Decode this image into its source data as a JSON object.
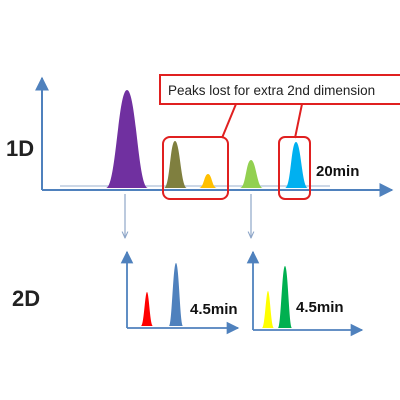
{
  "labels": {
    "first_dimension": "1D",
    "second_dimension": "2D",
    "callout": "Peaks lost for extra 2nd dimension",
    "first_dim_time": "20min",
    "second_dim_time_left": "4.5min",
    "second_dim_time_right": "4.5min"
  },
  "colors": {
    "axis": "#4f81bd",
    "arrow": "#8ea6c8",
    "callout_border": "#e02020",
    "peak_purple": "#7030a0",
    "peak_olive": "#7f7f3f",
    "peak_gold": "#ffc000",
    "peak_lightgreen": "#92d050",
    "peak_skyblue": "#00b0f0",
    "peak_red": "#ff0000",
    "peak_steelblue": "#4f81bd",
    "peak_yellow": "#ffff00",
    "peak_green": "#00b050"
  }
}
